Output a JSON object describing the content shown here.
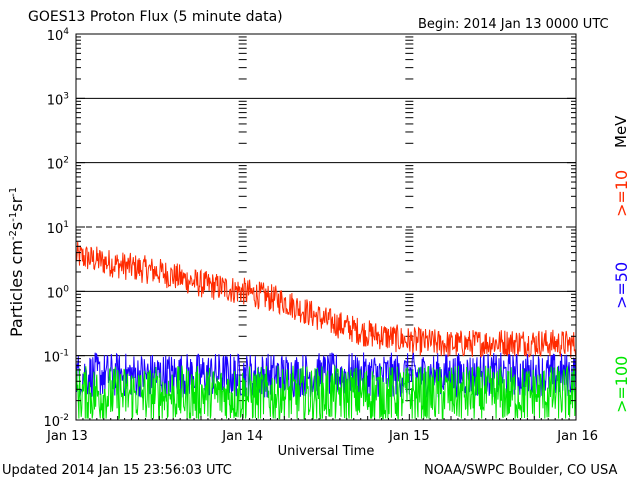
{
  "header": {
    "title": "GOES13 Proton Flux (5 minute data)",
    "begin": "Begin: 2014 Jan 13 0000 UTC"
  },
  "footer": {
    "updated": "Updated 2014 Jan 15 23:56:03 UTC",
    "credit": "NOAA/SWPC Boulder, CO USA"
  },
  "colors": {
    "ge10": "#ff2a00",
    "ge50": "#1a00ff",
    "ge100": "#00e600",
    "axis": "#000000"
  },
  "chart_data": {
    "type": "line",
    "title": "GOES13 Proton Flux (5 minute data)",
    "xlabel": "Universal Time",
    "ylabel_base": "Particles cm",
    "ylabel_parts": [
      "-2",
      "s",
      "-1",
      "sr",
      "-1"
    ],
    "yscale": "log",
    "ylim": [
      0.01,
      10000
    ],
    "xlim": [
      "2014-01-13 00:00",
      "2014-01-16 00:00"
    ],
    "x_ticks": [
      "Jan 13",
      "Jan 14",
      "Jan 15",
      "Jan 16"
    ],
    "y_ticks": [
      {
        "base": "10",
        "exp": "-2"
      },
      {
        "base": "10",
        "exp": "-1"
      },
      {
        "base": "10",
        "exp": "0"
      },
      {
        "base": "10",
        "exp": "1"
      },
      {
        "base": "10",
        "exp": "2"
      },
      {
        "base": "10",
        "exp": "3"
      },
      {
        "base": "10",
        "exp": "4"
      }
    ],
    "unit_label": "MeV",
    "series": [
      {
        "name": ">=10",
        "color": "#ff2a00",
        "points": [
          [
            "2014-01-13 00:00",
            3.6
          ],
          [
            "2014-01-13 06:00",
            2.6
          ],
          [
            "2014-01-13 12:00",
            2.0
          ],
          [
            "2014-01-13 18:00",
            1.3
          ],
          [
            "2014-01-14 00:00",
            1.0
          ],
          [
            "2014-01-14 06:00",
            0.7
          ],
          [
            "2014-01-14 12:00",
            0.35
          ],
          [
            "2014-01-14 18:00",
            0.22
          ],
          [
            "2014-01-15 00:00",
            0.17
          ],
          [
            "2014-01-15 06:00",
            0.15
          ],
          [
            "2014-01-15 12:00",
            0.16
          ],
          [
            "2014-01-15 18:00",
            0.16
          ],
          [
            "2014-01-16 00:00",
            0.15
          ]
        ]
      },
      {
        "name": ">=50",
        "color": "#1a00ff",
        "points": [
          [
            "2014-01-13 00:00",
            0.05
          ],
          [
            "2014-01-13 12:00",
            0.05
          ],
          [
            "2014-01-14 00:00",
            0.05
          ],
          [
            "2014-01-14 12:00",
            0.05
          ],
          [
            "2014-01-15 00:00",
            0.05
          ],
          [
            "2014-01-15 12:00",
            0.05
          ],
          [
            "2014-01-16 00:00",
            0.05
          ]
        ]
      },
      {
        "name": ">=100",
        "color": "#00e600",
        "points": [
          [
            "2014-01-13 00:00",
            0.025
          ],
          [
            "2014-01-13 12:00",
            0.025
          ],
          [
            "2014-01-14 00:00",
            0.025
          ],
          [
            "2014-01-14 12:00",
            0.025
          ],
          [
            "2014-01-15 00:00",
            0.025
          ],
          [
            "2014-01-15 12:00",
            0.025
          ],
          [
            "2014-01-16 00:00",
            0.025
          ]
        ]
      }
    ],
    "legend": "right",
    "grid": true
  }
}
